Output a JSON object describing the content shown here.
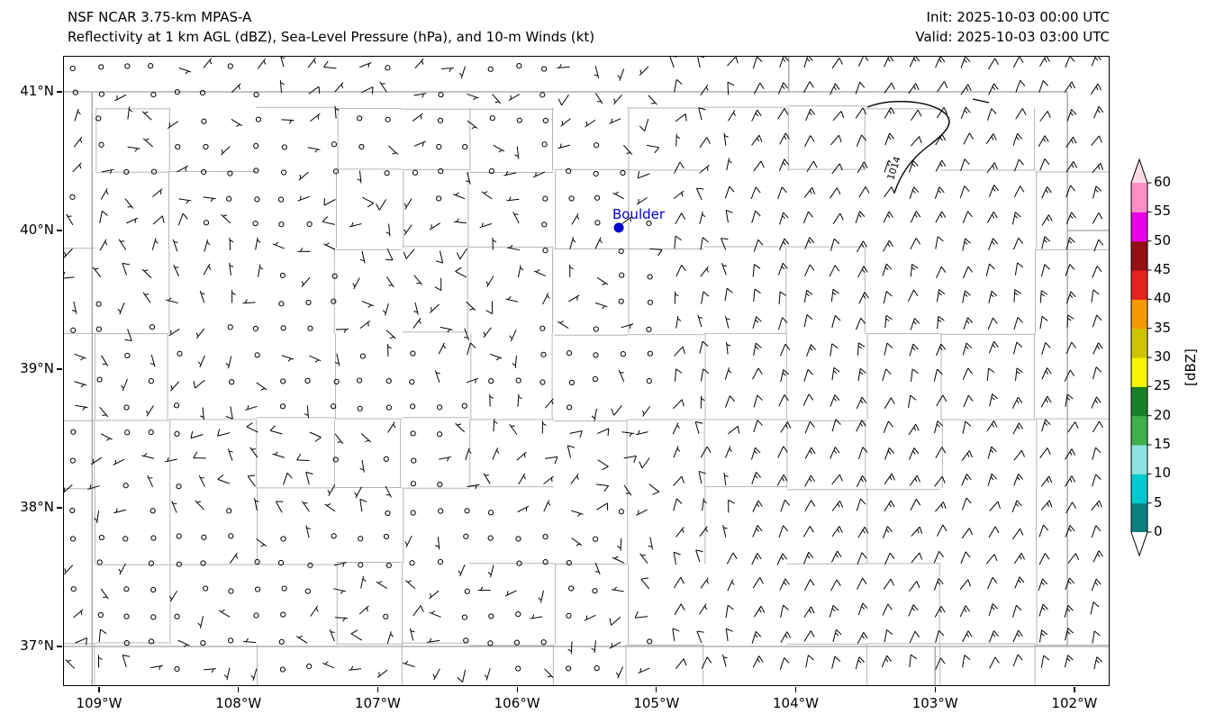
{
  "header": {
    "model": "NSF NCAR 3.75-km MPAS-A",
    "product": "Reflectivity at 1 km AGL (dBZ), Sea-Level Pressure (hPa), and 10-m Winds (kt)",
    "init": "Init: 2025-10-03 00:00 UTC",
    "valid": "Valid: 2025-10-03 03:00 UTC"
  },
  "chart_data": {
    "type": "map",
    "title": "NSF NCAR 3.75-km MPAS-A",
    "subtitle": "Reflectivity at 1 km AGL (dBZ), Sea-Level Pressure (hPa), and 10-m Winds (kt)",
    "init_time": "2025-10-03 00:00 UTC",
    "valid_time": "2025-10-03 03:00 UTC",
    "region": "Colorado and surrounding area",
    "extent": {
      "lon_min": -109.26,
      "lon_max": -101.75,
      "lat_min": 36.71,
      "lat_max": 41.26
    },
    "x_ticks": [
      {
        "lon": -109,
        "label": "109°W"
      },
      {
        "lon": -108,
        "label": "108°W"
      },
      {
        "lon": -107,
        "label": "107°W"
      },
      {
        "lon": -106,
        "label": "106°W"
      },
      {
        "lon": -105,
        "label": "105°W"
      },
      {
        "lon": -104,
        "label": "104°W"
      },
      {
        "lon": -103,
        "label": "103°W"
      },
      {
        "lon": -102,
        "label": "102°W"
      }
    ],
    "y_ticks": [
      {
        "lat": 41,
        "label": "41°N"
      },
      {
        "lat": 40,
        "label": "40°N"
      },
      {
        "lat": 39,
        "label": "39°N"
      },
      {
        "lat": 38,
        "label": "38°N"
      },
      {
        "lat": 37,
        "label": "37°N"
      }
    ],
    "colorbar": {
      "label": "[dBZ]",
      "tick_values": [
        0,
        5,
        10,
        15,
        20,
        25,
        30,
        35,
        40,
        45,
        50,
        55,
        60
      ],
      "segment_colors": [
        "#0e7f7f",
        "#00c9cf",
        "#8fe2e2",
        "#3fb04b",
        "#187f29",
        "#f5f500",
        "#cfc400",
        "#f59b00",
        "#e32222",
        "#941111",
        "#e800e8",
        "#ff8fc7"
      ],
      "under_color": "#ffffff",
      "over_color": "#ffd9e6",
      "extend": "both"
    },
    "city_marker": {
      "label": "Boulder",
      "lon": -105.27,
      "lat": 40.02,
      "color": "#0000cd"
    },
    "pressure_contours": [
      {
        "label": "1014",
        "value_hPa": 1014,
        "location": "northeast corner of domain"
      }
    ],
    "reflectivity": {
      "note": "No reflectivity echoes at or above 0 dBZ are visible anywhere in the domain."
    },
    "wind_field": {
      "units": "kt",
      "symbology": "station circles = calm, half barb = 5 kt, full barb = 10 kt",
      "regimes": [
        {
          "area": "eastern plains (east of ~104.4W)",
          "direction": "N to NNE",
          "speed_kt": [
            10,
            15
          ]
        },
        {
          "area": "foothills transition (~105W to 104.4W)",
          "direction": "variable northerly",
          "speed_kt": [
            5,
            10
          ]
        },
        {
          "area": "mountains and western Colorado",
          "direction": "variable",
          "speed_kt": [
            0,
            5
          ]
        }
      ]
    },
    "map_layers": [
      "county boundaries (gray)",
      "state boundaries (gray)",
      "10-m wind barbs (black)",
      "sea-level pressure contour 1014 hPa (black)",
      "Boulder city marker (blue)"
    ]
  }
}
